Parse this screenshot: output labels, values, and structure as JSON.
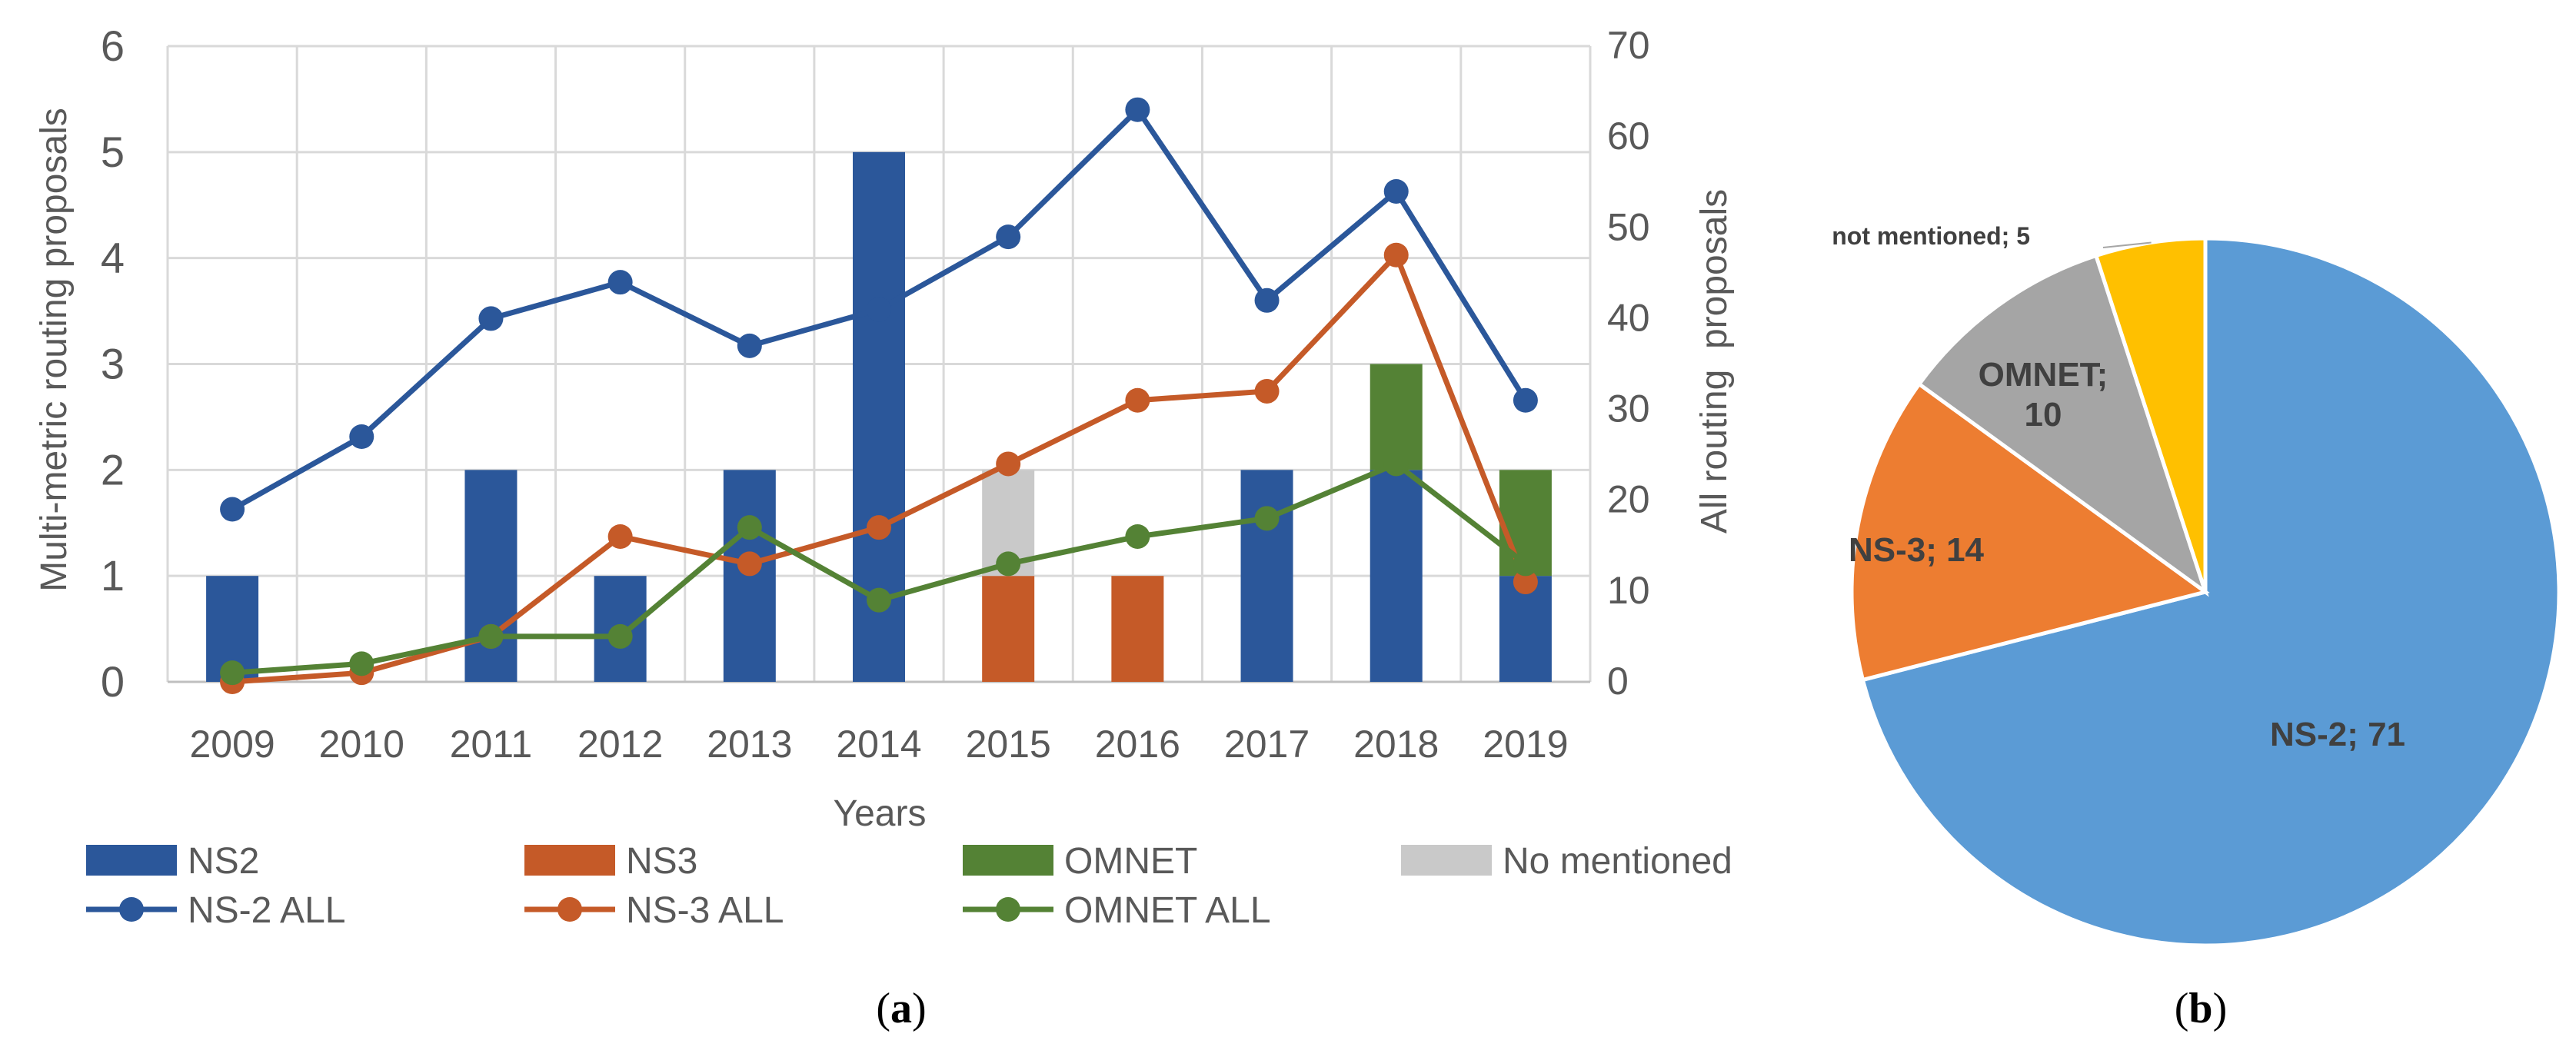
{
  "chart_data": [
    {
      "type": "bar+line",
      "caption": "(a)",
      "title": "",
      "xlabel": "Years",
      "ylabel_left": "Multi-metric routing proposals",
      "ylabel_right": "All routing  proposals",
      "ylim_left": [
        0,
        6
      ],
      "yticks_left": [
        "0",
        "1",
        "2",
        "3",
        "4",
        "5",
        "6"
      ],
      "ylim_right": [
        0,
        70
      ],
      "yticks_right": [
        "0",
        "10",
        "20",
        "30",
        "40",
        "50",
        "60",
        "70"
      ],
      "categories": [
        "2009",
        "2010",
        "2011",
        "2012",
        "2013",
        "2014",
        "2015",
        "2016",
        "2017",
        "2018",
        "2019"
      ],
      "bar_series": [
        {
          "name": "NS2",
          "color": "#2b579a",
          "values": [
            1,
            0,
            2,
            1,
            2,
            5,
            0,
            0,
            2,
            2,
            1
          ]
        },
        {
          "name": "NS3",
          "color": "#c55a28",
          "values": [
            0,
            0,
            0,
            0,
            0,
            0,
            1,
            1,
            0,
            0,
            0
          ]
        },
        {
          "name": "OMNET",
          "color": "#548235",
          "values": [
            0,
            0,
            0,
            0,
            0,
            0,
            0,
            0,
            0,
            1,
            1
          ]
        },
        {
          "name": "No mentioned",
          "color": "#c9c9c9",
          "values": [
            0,
            0,
            0,
            0,
            0,
            0,
            1,
            0,
            0,
            0,
            0
          ]
        }
      ],
      "line_series": [
        {
          "name": "NS-2 ALL",
          "color": "#2b579a",
          "values": [
            19,
            27,
            40,
            44,
            37,
            41,
            49,
            63,
            42,
            54,
            31
          ]
        },
        {
          "name": "NS-3 ALL",
          "color": "#c55a28",
          "values": [
            0,
            1,
            5,
            16,
            13,
            17,
            24,
            31,
            32,
            47,
            11
          ]
        },
        {
          "name": "OMNET ALL",
          "color": "#548235",
          "values": [
            1,
            2,
            5,
            5,
            17,
            9,
            13,
            16,
            18,
            24,
            13
          ]
        }
      ],
      "legend_position": "bottom"
    },
    {
      "type": "pie",
      "caption": "(b)",
      "slices": [
        {
          "name": "NS-2",
          "value": 71,
          "label": "NS-2; 71",
          "color": "#5b9bd5"
        },
        {
          "name": "NS-3",
          "value": 14,
          "label": "NS-3; 14",
          "color": "#ed7d31"
        },
        {
          "name": "OMNET",
          "value": 10,
          "label": "OMNET; 10",
          "label_lines": [
            "OMNET;",
            "10"
          ],
          "color": "#a5a5a5"
        },
        {
          "name": "not mentioned",
          "value": 5,
          "label": "not mentioned; 5",
          "color": "#ffc000"
        }
      ]
    }
  ]
}
